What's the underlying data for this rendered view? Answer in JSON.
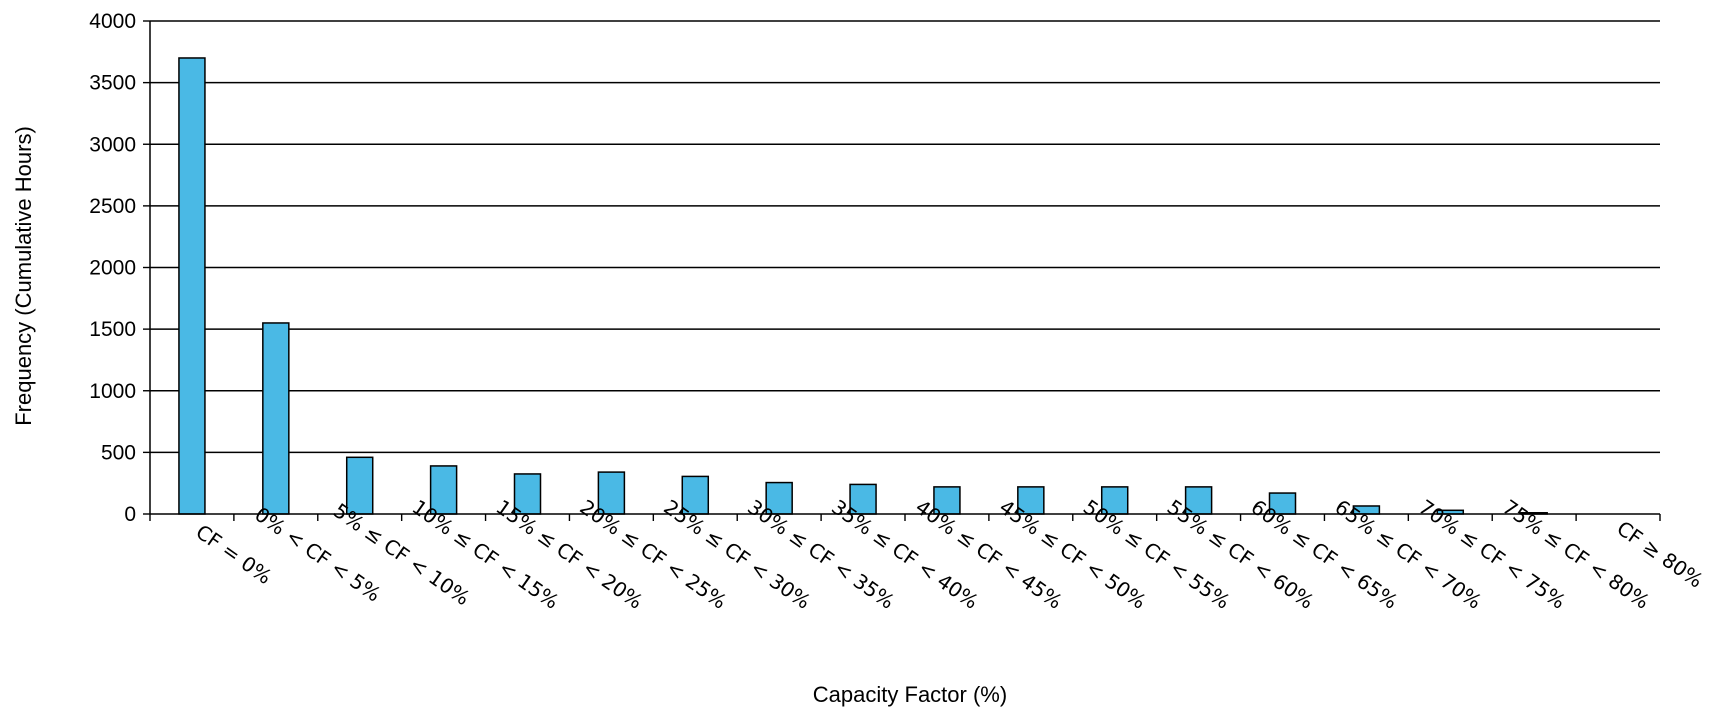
{
  "chart_data": {
    "type": "bar",
    "title": "",
    "xlabel": "Capacity Factor (%)",
    "ylabel": "Frequency (Cumulative Hours)",
    "ylim": [
      0,
      4000
    ],
    "yticks": [
      0,
      500,
      1000,
      1500,
      2000,
      2500,
      3000,
      3500,
      4000
    ],
    "grid": true,
    "legend": "none",
    "bar_color": "#4ab9e5",
    "bar_edge_color": "#000000",
    "categories": [
      "CF = 0%",
      "0% < CF < 5%",
      "5% ≤ CF < 10%",
      "10% ≤ CF < 15%",
      "15% ≤ CF < 20%",
      "20% ≤ CF < 25%",
      "25% ≤ CF < 30%",
      "30% ≤ CF < 35%",
      "35% ≤ CF < 40%",
      "40% ≤ CF < 45%",
      "45% ≤ CF < 50%",
      "50% ≤ CF < 55%",
      "55% ≤ CF < 60%",
      "60% ≤ CF < 65%",
      "65% ≤ CF < 70%",
      "70% ≤ CF < 75%",
      "75% ≤ CF < 80%",
      "CF ≥ 80%"
    ],
    "values": [
      3700,
      1550,
      460,
      390,
      325,
      340,
      305,
      255,
      240,
      220,
      220,
      220,
      220,
      170,
      65,
      30,
      10,
      0
    ]
  }
}
